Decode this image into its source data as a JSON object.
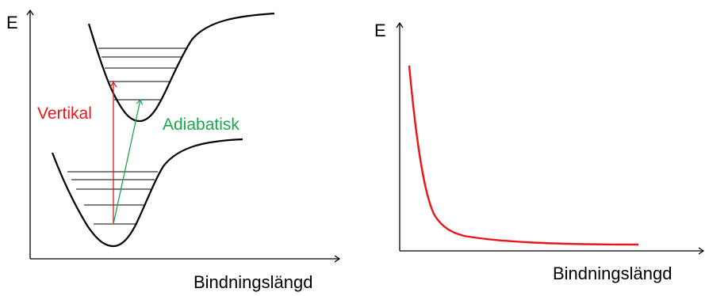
{
  "left_panel": {
    "y_axis_label": "E",
    "x_axis_label": "Bindningslängd",
    "vertical_label": "Vertikal",
    "adiabatic_label": "Adiabatisk"
  },
  "right_panel": {
    "y_axis_label": "E",
    "x_axis_label": "Bindningslängd"
  },
  "colors": {
    "axis": "#000000",
    "vertical": "#e8151b",
    "adiabatic": "#1aa64b",
    "curve": "#e8151b"
  }
}
